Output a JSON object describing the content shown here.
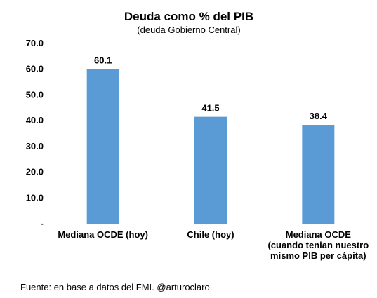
{
  "chart_data": {
    "type": "bar",
    "title": "Deuda como % del PIB",
    "subtitle": "(deuda Gobierno Central)",
    "categories": [
      [
        "Mediana OCDE (hoy)"
      ],
      [
        "Chile (hoy)"
      ],
      [
        "Mediana OCDE",
        "(cuando tenian nuestro",
        "mismo PIB per cápita)"
      ]
    ],
    "values": [
      60.1,
      41.5,
      38.4
    ],
    "value_labels": [
      "60.1",
      "41.5",
      "38.4"
    ],
    "ylim": [
      0,
      70
    ],
    "yticks": [
      0,
      10,
      20,
      30,
      40,
      50,
      60,
      70
    ],
    "ytick_labels": [
      "-",
      "10.0",
      "20.0",
      "30.0",
      "40.0",
      "50.0",
      "60.0",
      "70.0"
    ],
    "xlabel": "",
    "ylabel": "",
    "grid": false,
    "bar_color": "#5b9bd5"
  },
  "source": "Fuente: en base a datos del FMI. @arturoclaro."
}
